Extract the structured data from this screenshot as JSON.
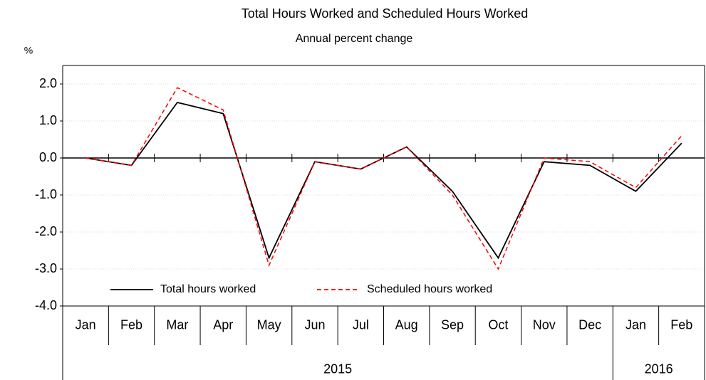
{
  "chart_data": {
    "type": "line",
    "title": "Total Hours Worked and Scheduled Hours Worked",
    "subtitle": "Annual percent change",
    "y_unit": "%",
    "category_groups": [
      {
        "label": "2015",
        "categories": [
          "Jan",
          "Feb",
          "Mar",
          "Apr",
          "May",
          "Jun",
          "Jul",
          "Aug",
          "Sep",
          "Oct",
          "Nov",
          "Dec"
        ]
      },
      {
        "label": "2016",
        "categories": [
          "Jan",
          "Feb"
        ]
      }
    ],
    "series": [
      {
        "name": "Total hours worked",
        "color": "#000000",
        "style": "solid",
        "values": [
          0.0,
          -0.2,
          1.5,
          1.2,
          -2.7,
          -0.1,
          -0.3,
          0.3,
          -0.9,
          -2.7,
          -0.1,
          -0.2,
          -0.9,
          0.4
        ]
      },
      {
        "name": "Scheduled hours worked",
        "color": "#ff0000",
        "style": "dashed",
        "values": [
          0.0,
          -0.2,
          1.9,
          1.3,
          -2.9,
          -0.1,
          -0.3,
          0.3,
          -1.0,
          -3.0,
          0.0,
          -0.1,
          -0.8,
          0.6
        ]
      }
    ],
    "ylim": [
      -4,
      2.5
    ],
    "yticks": [
      {
        "value": 2,
        "label": "2.0"
      },
      {
        "value": 1,
        "label": "1.0"
      },
      {
        "value": 0,
        "label": "0.0"
      },
      {
        "value": -1,
        "label": "-1.0"
      },
      {
        "value": -2,
        "label": "-2.0"
      },
      {
        "value": -3,
        "label": "-3.0"
      },
      {
        "value": -4,
        "label": "-4.0"
      }
    ],
    "grid": true,
    "legend": "lower left"
  }
}
